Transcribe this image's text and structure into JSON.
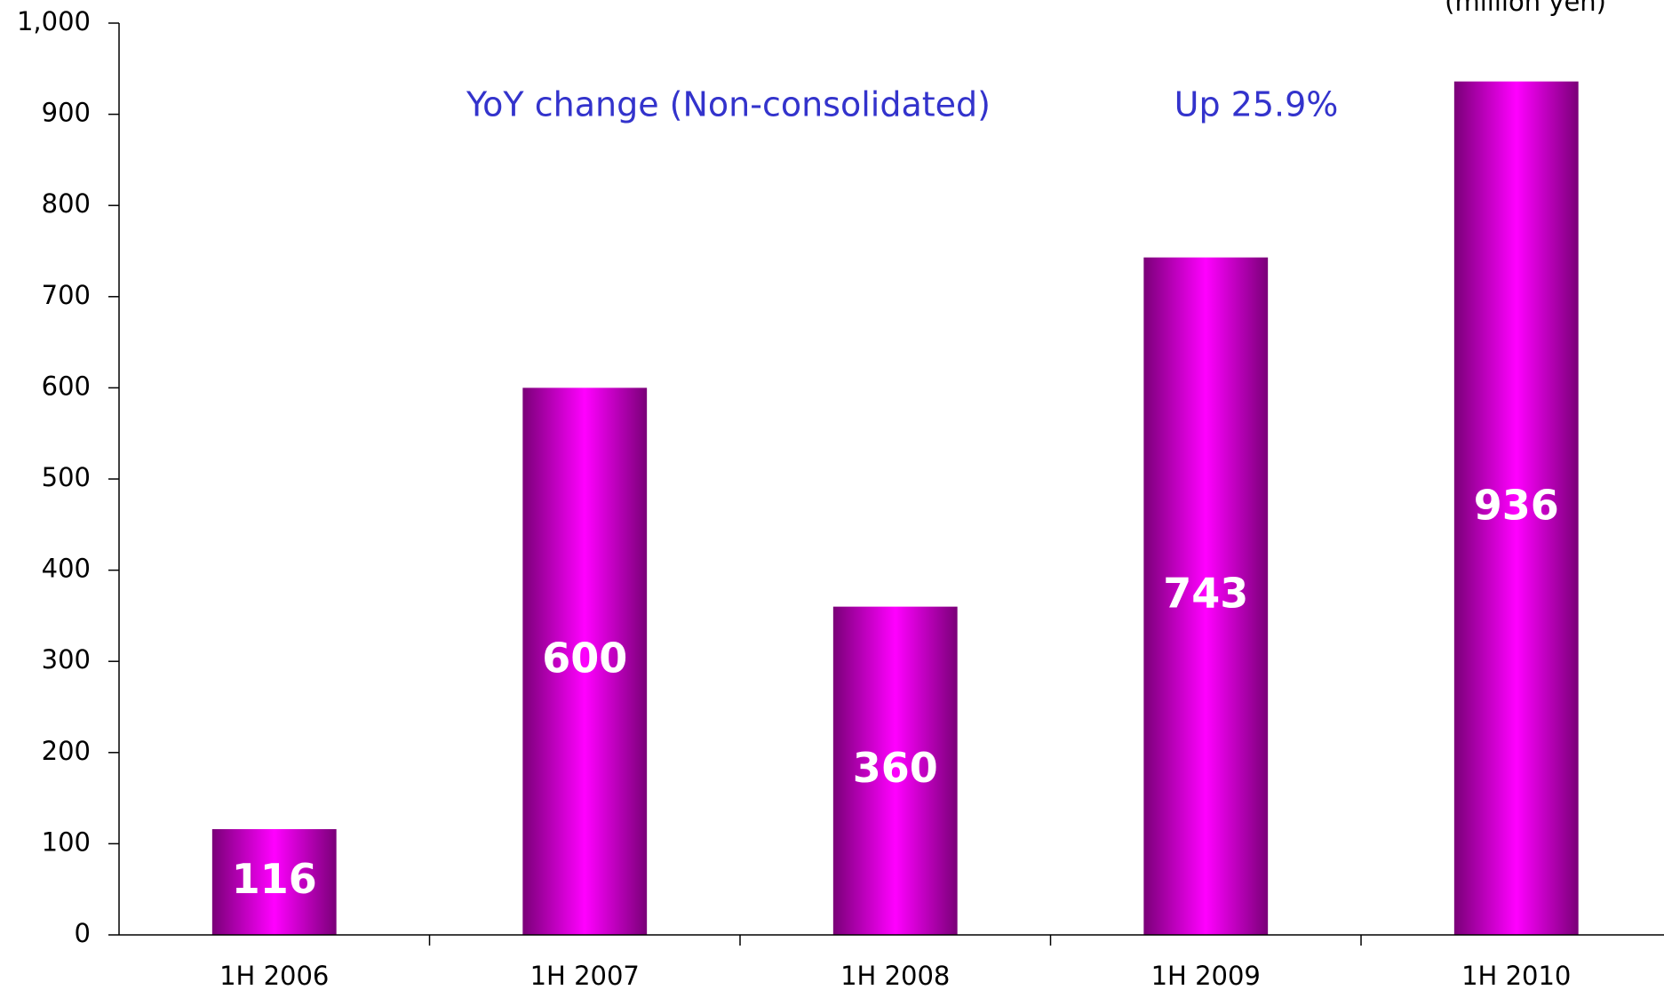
{
  "chart_data": {
    "type": "bar",
    "unit_label": "(million yen)",
    "annotations": [
      "YoY change (Non-consolidated)",
      "Up 25.9%"
    ],
    "categories": [
      "1H 2006",
      "1H 2007",
      "1H 2008",
      "1H 2009",
      "1H 2010"
    ],
    "values": [
      116,
      600,
      360,
      743,
      936
    ],
    "color": "#ff00ff",
    "ylim": [
      0,
      1000
    ],
    "yticks": [
      0,
      100,
      200,
      300,
      400,
      500,
      600,
      700,
      800,
      900,
      {
        "value": 1000,
        "label": "1,000"
      }
    ],
    "grid": false
  }
}
